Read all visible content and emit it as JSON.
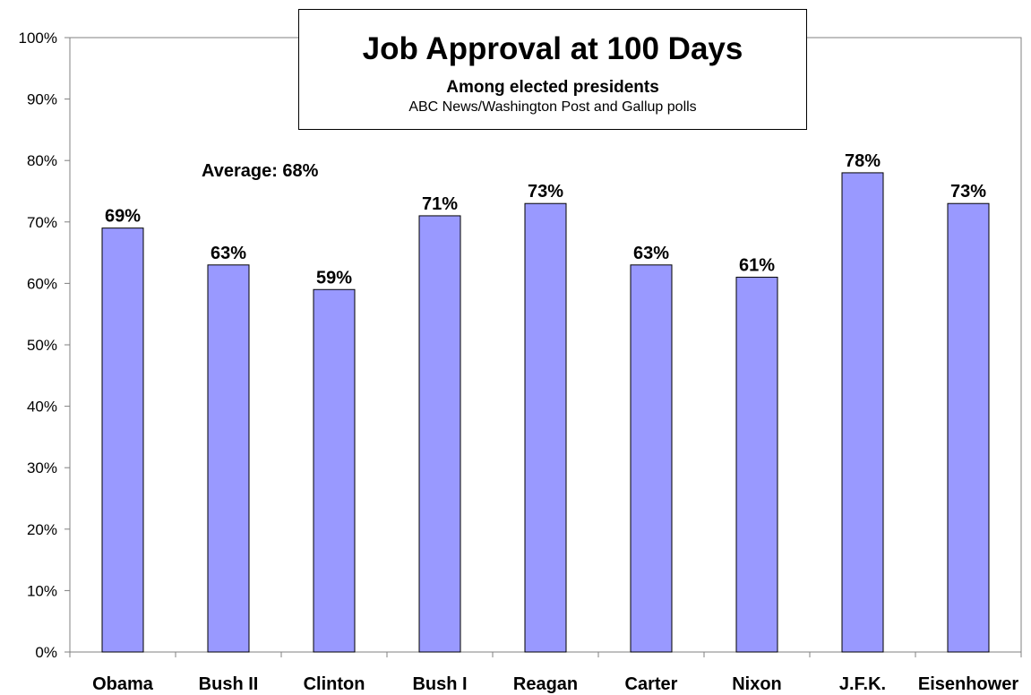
{
  "chart_data": {
    "type": "bar",
    "title": "Job Approval at 100 Days",
    "subtitle": "Among elected presidents",
    "source": "ABC News/Washington Post and Gallup polls",
    "annotation": "Average: 68%",
    "categories": [
      "Obama",
      "Bush II",
      "Clinton",
      "Bush I",
      "Reagan",
      "Carter",
      "Nixon",
      "J.F.K.",
      "Eisenhower"
    ],
    "values": [
      69,
      63,
      59,
      71,
      73,
      63,
      61,
      78,
      73
    ],
    "data_labels": [
      "69%",
      "63%",
      "59%",
      "71%",
      "73%",
      "63%",
      "61%",
      "78%",
      "73%"
    ],
    "yticks": [
      "0%",
      "10%",
      "20%",
      "30%",
      "40%",
      "50%",
      "60%",
      "70%",
      "80%",
      "90%",
      "100%"
    ],
    "ylim": [
      0,
      100
    ],
    "xlabel": "",
    "ylabel": "",
    "grid": false,
    "legend": "none",
    "colors": {
      "bar_fill": "#9999ff",
      "bar_stroke": "#000000",
      "axis": "#808080"
    }
  }
}
